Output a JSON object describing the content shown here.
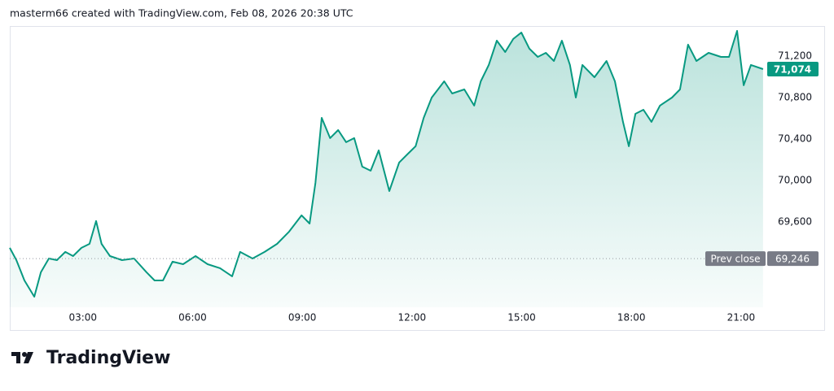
{
  "header": {
    "title": "masterm66 created with TradingView.com, Feb 08, 2026 20:38 UTC"
  },
  "footer": {
    "brand": "TradingView"
  },
  "chart_data": {
    "type": "area",
    "series": [
      {
        "color": "#089981",
        "x": [
          1.0,
          1.18,
          1.4,
          1.67,
          1.85,
          2.07,
          2.29,
          2.52,
          2.73,
          2.96,
          3.18,
          3.36,
          3.51,
          3.74,
          4.07,
          4.4,
          4.74,
          4.96,
          5.19,
          5.45,
          5.74,
          6.08,
          6.41,
          6.75,
          7.08,
          7.3,
          7.64,
          7.97,
          8.31,
          8.64,
          8.98,
          9.2,
          9.36,
          9.53,
          9.76,
          9.98,
          10.2,
          10.42,
          10.64,
          10.87,
          11.09,
          11.38,
          11.65,
          11.87,
          12.1,
          12.32,
          12.54,
          12.88,
          13.1,
          13.43,
          13.7,
          13.88,
          14.1,
          14.32,
          14.55,
          14.77,
          14.99,
          15.21,
          15.44,
          15.66,
          15.88,
          16.1,
          16.32,
          16.48,
          16.66,
          16.99,
          17.32,
          17.55,
          17.77,
          17.93,
          18.11,
          18.33,
          18.55,
          18.78,
          19.11,
          19.33,
          19.55,
          19.78,
          20.11,
          20.45,
          20.67,
          20.89,
          21.07,
          21.27,
          21.6
        ],
        "values": [
          69349,
          69231,
          69035,
          68878,
          69114,
          69247,
          69231,
          69310,
          69270,
          69349,
          69388,
          69608,
          69388,
          69270,
          69231,
          69247,
          69114,
          69035,
          69035,
          69216,
          69192,
          69270,
          69192,
          69153,
          69075,
          69310,
          69247,
          69310,
          69388,
          69506,
          69663,
          69584,
          69976,
          70604,
          70408,
          70486,
          70369,
          70408,
          70133,
          70094,
          70290,
          69898,
          70173,
          70251,
          70330,
          70604,
          70800,
          70957,
          70839,
          70878,
          70722,
          70957,
          71114,
          71349,
          71239,
          71365,
          71427,
          71271,
          71192,
          71231,
          71153,
          71349,
          71114,
          70800,
          71114,
          70996,
          71153,
          70957,
          70565,
          70330,
          70643,
          70682,
          70565,
          70722,
          70800,
          70878,
          71310,
          71153,
          71231,
          71192,
          71192,
          71443,
          70918,
          71114,
          71074
        ]
      }
    ],
    "last_price": {
      "value": 71074,
      "label": "71,074"
    },
    "prev_close": {
      "name": "Prev close",
      "value": 69246,
      "label": "69,246"
    },
    "xlim": [
      1,
      21.67
    ],
    "xticks": [
      {
        "value": 3,
        "label": "03:00"
      },
      {
        "value": 6,
        "label": "06:00"
      },
      {
        "value": 9,
        "label": "09:00"
      },
      {
        "value": 12,
        "label": "12:00"
      },
      {
        "value": 15,
        "label": "15:00"
      },
      {
        "value": 18,
        "label": "18:00"
      },
      {
        "value": 21,
        "label": "21:00"
      }
    ],
    "ylim": [
      68776,
      71490
    ],
    "yticks": [
      {
        "value": 69600,
        "label": "69,600"
      },
      {
        "value": 70000,
        "label": "70,000"
      },
      {
        "value": 70400,
        "label": "70,400"
      },
      {
        "value": 70800,
        "label": "70,800"
      },
      {
        "value": 71200,
        "label": "71,200"
      }
    ],
    "grid": false
  }
}
